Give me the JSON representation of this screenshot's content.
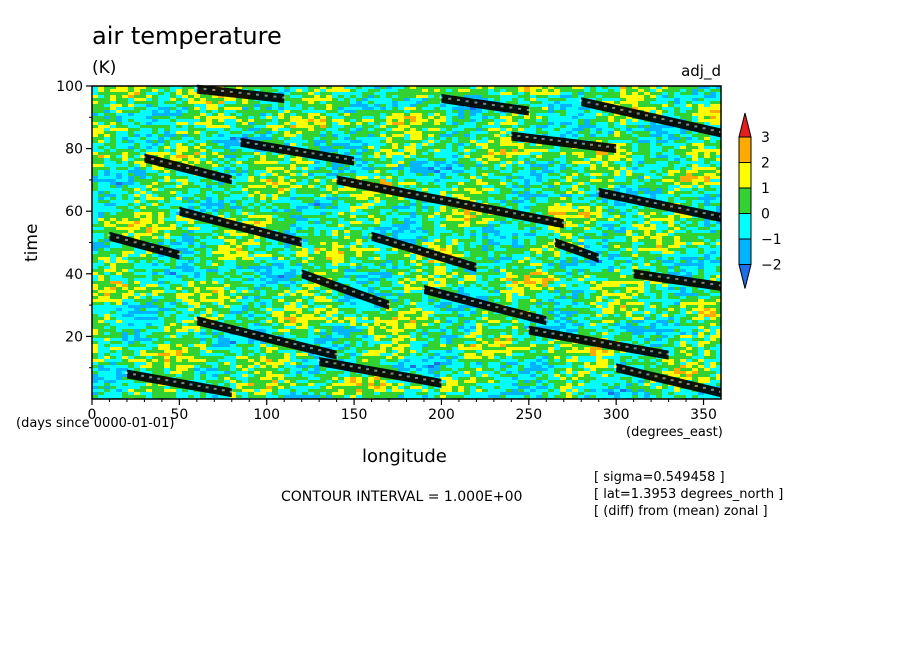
{
  "title": "air temperature",
  "units": "(K)",
  "tag": "adj_d",
  "contour_interval": "CONTOUR INTERVAL = 1.000E+00",
  "notes": [
    "[ sigma=0.549458 ]",
    "[ lat=1.3953 degrees_north ]",
    "[ (diff) from (mean) zonal ]"
  ],
  "colors": {
    "levels": [
      "#1e6ee6",
      "#00b4ff",
      "#00ffff",
      "#32d232",
      "#ffff00",
      "#ffaa00",
      "#e61e1e"
    ],
    "hatch": "#000000"
  },
  "chart_data": {
    "type": "heatmap",
    "title": "air temperature",
    "subtitle": "(K)",
    "xlabel": "longitude",
    "x_units": "(degrees_east)",
    "ylabel": "time",
    "y_units": "(days since 0000-01-01)",
    "xlim": [
      0,
      360
    ],
    "ylim": [
      0,
      100
    ],
    "x_ticks": [
      0,
      50,
      100,
      150,
      200,
      250,
      300,
      350
    ],
    "y_ticks": [
      20,
      40,
      60,
      80,
      100
    ],
    "colorbar": {
      "levels": [
        -2,
        -1,
        0,
        1,
        2,
        3
      ],
      "tick_labels": [
        "3",
        "2",
        "1",
        "0",
        "−1",
        "−2"
      ],
      "colors": [
        "#1e6ee6",
        "#00b4ff",
        "#00ffff",
        "#32d232",
        "#ffff00",
        "#ffaa00",
        "#e61e1e"
      ]
    },
    "hatched_regions_note": "black hatching marks values above threshold",
    "hatched_regions": [
      {
        "x": [
          10,
          50
        ],
        "y": [
          52,
          46
        ]
      },
      {
        "x": [
          30,
          80
        ],
        "y": [
          77,
          70
        ]
      },
      {
        "x": [
          85,
          150
        ],
        "y": [
          82,
          76
        ]
      },
      {
        "x": [
          140,
          270
        ],
        "y": [
          70,
          56
        ]
      },
      {
        "x": [
          160,
          220
        ],
        "y": [
          52,
          42
        ]
      },
      {
        "x": [
          50,
          120
        ],
        "y": [
          60,
          50
        ]
      },
      {
        "x": [
          120,
          170
        ],
        "y": [
          40,
          30
        ]
      },
      {
        "x": [
          190,
          260
        ],
        "y": [
          35,
          25
        ]
      },
      {
        "x": [
          250,
          330
        ],
        "y": [
          22,
          14
        ]
      },
      {
        "x": [
          280,
          360
        ],
        "y": [
          95,
          85
        ]
      },
      {
        "x": [
          290,
          360
        ],
        "y": [
          66,
          58
        ]
      },
      {
        "x": [
          310,
          360
        ],
        "y": [
          40,
          36
        ]
      },
      {
        "x": [
          60,
          140
        ],
        "y": [
          25,
          14
        ]
      },
      {
        "x": [
          20,
          80
        ],
        "y": [
          8,
          2
        ]
      },
      {
        "x": [
          130,
          200
        ],
        "y": [
          12,
          5
        ]
      },
      {
        "x": [
          300,
          360
        ],
        "y": [
          10,
          2
        ]
      },
      {
        "x": [
          200,
          250
        ],
        "y": [
          96,
          92
        ]
      },
      {
        "x": [
          60,
          110
        ],
        "y": [
          99,
          96
        ]
      },
      {
        "x": [
          265,
          290
        ],
        "y": [
          50,
          45
        ]
      },
      {
        "x": [
          240,
          300
        ],
        "y": [
          84,
          80
        ]
      }
    ]
  }
}
